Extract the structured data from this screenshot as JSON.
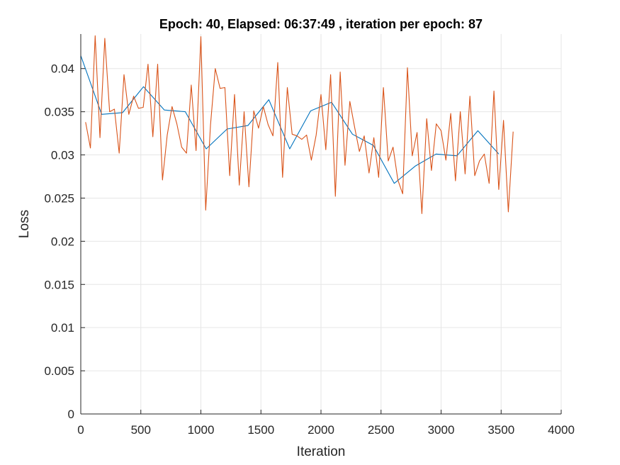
{
  "chart_data": {
    "type": "line",
    "title": "Epoch: 40, Elapsed: 06:37:49  , iteration per epoch: 87",
    "xlabel": "Iteration",
    "ylabel": "Loss",
    "xlim": [
      0,
      4000
    ],
    "ylim": [
      0,
      0.044
    ],
    "xticks": [
      0,
      500,
      1000,
      1500,
      2000,
      2500,
      3000,
      3500,
      4000
    ],
    "xtick_labels": [
      "0",
      "500",
      "1000",
      "1500",
      "2000",
      "2500",
      "3000",
      "3500",
      "4000"
    ],
    "yticks": [
      0,
      0.005,
      0.01,
      0.015,
      0.02,
      0.025,
      0.03,
      0.035,
      0.04
    ],
    "ytick_labels": [
      "0",
      "0.005",
      "0.01",
      "0.015",
      "0.02",
      "0.025",
      "0.03",
      "0.035",
      "0.04"
    ],
    "grid": true,
    "series": [
      {
        "color": "#0072BD",
        "x": [
          0,
          174,
          348,
          522,
          696,
          870,
          1044,
          1218,
          1392,
          1566,
          1740,
          1914,
          2088,
          2262,
          2436,
          2610,
          2784,
          2958,
          3132,
          3306,
          3480
        ],
        "y": [
          0.0415,
          0.0347,
          0.0349,
          0.0379,
          0.0352,
          0.035,
          0.0307,
          0.033,
          0.0334,
          0.0364,
          0.0307,
          0.0351,
          0.0361,
          0.0324,
          0.0311,
          0.0267,
          0.0287,
          0.0301,
          0.0299,
          0.0328,
          0.0301
        ]
      },
      {
        "color": "#D95319",
        "x": [
          40,
          80,
          120,
          160,
          200,
          240,
          280,
          320,
          360,
          400,
          440,
          480,
          520,
          560,
          600,
          640,
          680,
          720,
          760,
          800,
          840,
          880,
          920,
          960,
          1000,
          1040,
          1080,
          1120,
          1160,
          1200,
          1240,
          1280,
          1320,
          1360,
          1400,
          1440,
          1480,
          1520,
          1560,
          1600,
          1640,
          1680,
          1720,
          1760,
          1800,
          1840,
          1880,
          1920,
          1960,
          2000,
          2040,
          2080,
          2120,
          2160,
          2200,
          2240,
          2280,
          2320,
          2360,
          2400,
          2440,
          2480,
          2520,
          2560,
          2600,
          2640,
          2680,
          2720,
          2760,
          2800,
          2840,
          2880,
          2920,
          2960,
          3000,
          3040,
          3080,
          3120,
          3160,
          3200,
          3240,
          3280,
          3320,
          3360,
          3400,
          3440,
          3480,
          3520,
          3560,
          3600
        ],
        "y": [
          0.0338,
          0.0308,
          0.0438,
          0.032,
          0.0435,
          0.035,
          0.0353,
          0.0302,
          0.0393,
          0.0347,
          0.0368,
          0.0354,
          0.0355,
          0.0405,
          0.0321,
          0.0405,
          0.0271,
          0.0323,
          0.0356,
          0.0336,
          0.0309,
          0.0302,
          0.0381,
          0.0305,
          0.0437,
          0.0236,
          0.0335,
          0.04,
          0.0377,
          0.0378,
          0.0276,
          0.037,
          0.0265,
          0.035,
          0.0263,
          0.0351,
          0.0331,
          0.0356,
          0.0335,
          0.0322,
          0.0407,
          0.0274,
          0.0378,
          0.0324,
          0.0322,
          0.0318,
          0.0323,
          0.0294,
          0.0323,
          0.037,
          0.0306,
          0.0393,
          0.0252,
          0.0396,
          0.0288,
          0.0362,
          0.0332,
          0.0304,
          0.0322,
          0.0279,
          0.032,
          0.0274,
          0.0378,
          0.0293,
          0.0309,
          0.0271,
          0.0255,
          0.0401,
          0.0299,
          0.0326,
          0.0232,
          0.0342,
          0.0282,
          0.0336,
          0.0328,
          0.0294,
          0.0348,
          0.027,
          0.035,
          0.0278,
          0.0368,
          0.0276,
          0.0293,
          0.0301,
          0.0267,
          0.0374,
          0.026,
          0.034,
          0.0234,
          0.0327
        ]
      }
    ]
  }
}
